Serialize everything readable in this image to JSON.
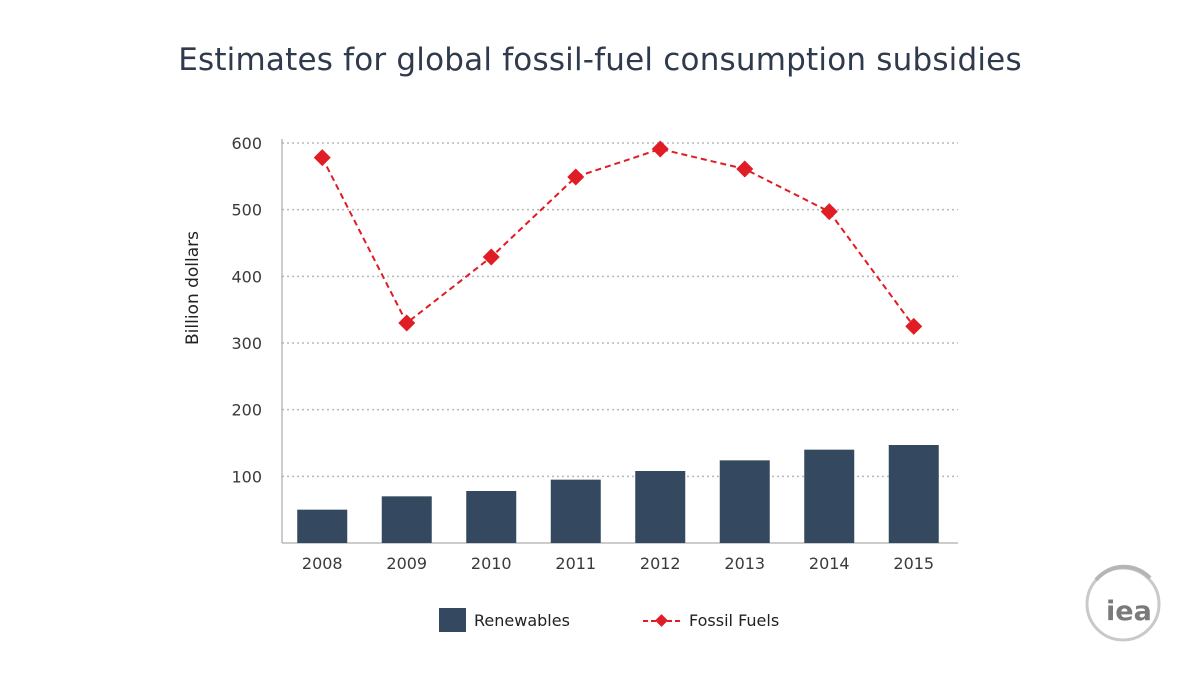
{
  "chart_data": {
    "type": "bar+line",
    "title": "Estimates for global fossil-fuel consumption subsidies",
    "ylabel": "Billion dollars",
    "xlabel": "",
    "ylim": [
      0,
      600
    ],
    "yticks": [
      100,
      200,
      300,
      400,
      500,
      600
    ],
    "categories": [
      "2008",
      "2009",
      "2010",
      "2011",
      "2012",
      "2013",
      "2014",
      "2015"
    ],
    "series": [
      {
        "name": "Renewables",
        "kind": "bar",
        "color": "#34495f",
        "values": [
          50,
          70,
          78,
          95,
          108,
          124,
          140,
          147
        ]
      },
      {
        "name": "Fossil Fuels",
        "kind": "line",
        "color": "#e01c24",
        "style": "dashed",
        "marker": "diamond",
        "values": [
          578,
          330,
          429,
          549,
          591,
          561,
          497,
          325
        ]
      }
    ],
    "grid": true,
    "legend": "bottom-center"
  },
  "logo": {
    "text": "iea"
  }
}
